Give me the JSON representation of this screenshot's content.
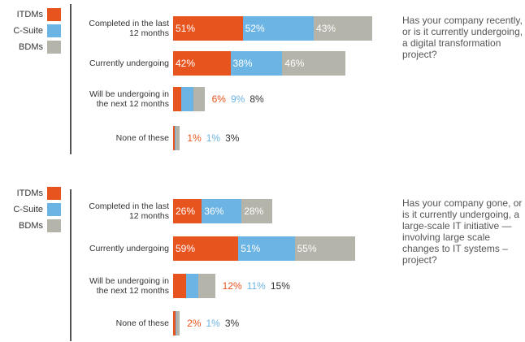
{
  "chart_data": [
    {
      "type": "bar",
      "orientation": "horizontal",
      "stacked": true,
      "annotation": "Has your company recently, or is it currently undergoing, a digital transformation project?",
      "categories": [
        "Completed in the last 12 months",
        "Currently undergoing",
        "Will be undergoing in the next 12 months",
        "None of these"
      ],
      "series": [
        {
          "name": "ITDMs",
          "color": "#e8541e",
          "values": [
            51,
            42,
            6,
            1
          ],
          "value_labels": [
            "51%",
            "42%",
            "6%",
            "1%"
          ]
        },
        {
          "name": "C-Suite",
          "color": "#6cb4e4",
          "values": [
            52,
            38,
            9,
            1
          ],
          "value_labels": [
            "52%",
            "38%",
            "9%",
            "1%"
          ]
        },
        {
          "name": "BDMs",
          "color": "#b4b4aa",
          "values": [
            43,
            46,
            8,
            3
          ],
          "value_labels": [
            "43%",
            "46%",
            "8%",
            "3%"
          ]
        }
      ]
    },
    {
      "type": "bar",
      "orientation": "horizontal",
      "stacked": true,
      "annotation": "Has your company gone, or is it currently undergoing, a large-scale IT initiative — involving large scale changes to IT systems – project?",
      "categories": [
        "Completed in the last 12 months",
        "Currently undergoing",
        "Will be undergoing in the next 12 months",
        "None of these"
      ],
      "series": [
        {
          "name": "ITDMs",
          "color": "#e8541e",
          "values": [
            26,
            59,
            12,
            2
          ],
          "value_labels": [
            "26%",
            "59%",
            "12%",
            "2%"
          ]
        },
        {
          "name": "C-Suite",
          "color": "#6cb4e4",
          "values": [
            36,
            51,
            11,
            1
          ],
          "value_labels": [
            "36%",
            "51%",
            "11%",
            "1%"
          ]
        },
        {
          "name": "BDMs",
          "color": "#b4b4aa",
          "values": [
            28,
            55,
            15,
            3
          ],
          "value_labels": [
            "28%",
            "55%",
            "15%",
            "3%"
          ]
        }
      ]
    }
  ]
}
